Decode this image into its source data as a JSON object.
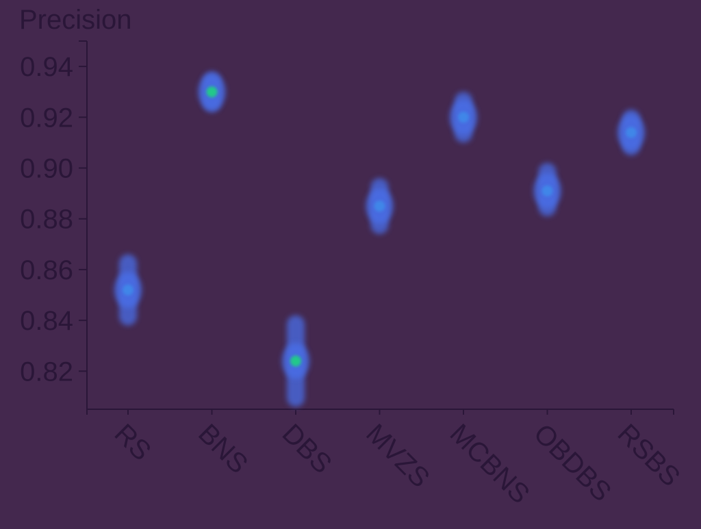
{
  "chart_data": {
    "type": "scatter",
    "ylabel": "Precision",
    "xlabel": "",
    "ylim": [
      0.805,
      0.95
    ],
    "yticks": [
      "0.82",
      "0.84",
      "0.86",
      "0.88",
      "0.90",
      "0.92",
      "0.94"
    ],
    "grid": false,
    "categories": [
      "RS",
      "BNS",
      "DBS",
      "MVZS",
      "MCBNS",
      "OBDBS",
      "RSBS"
    ],
    "points": [
      {
        "label": "RS",
        "value": 0.852,
        "low": 0.838,
        "high": 0.866
      },
      {
        "label": "BNS",
        "value": 0.93,
        "low": 0.922,
        "high": 0.938
      },
      {
        "label": "DBS",
        "value": 0.824,
        "low": 0.806,
        "high": 0.842
      },
      {
        "label": "MVZS",
        "value": 0.885,
        "low": 0.874,
        "high": 0.896
      },
      {
        "label": "MCBNS",
        "value": 0.92,
        "low": 0.91,
        "high": 0.93
      },
      {
        "label": "OBDBS",
        "value": 0.891,
        "low": 0.881,
        "high": 0.902
      },
      {
        "label": "RSBS",
        "value": 0.914,
        "low": 0.905,
        "high": 0.923
      }
    ],
    "colors": {
      "background": "#44284e",
      "axis": "#2a1638",
      "glow": "#4a6ee8",
      "core_blue": "#3f86e8",
      "core_green": "#22c88a"
    }
  }
}
